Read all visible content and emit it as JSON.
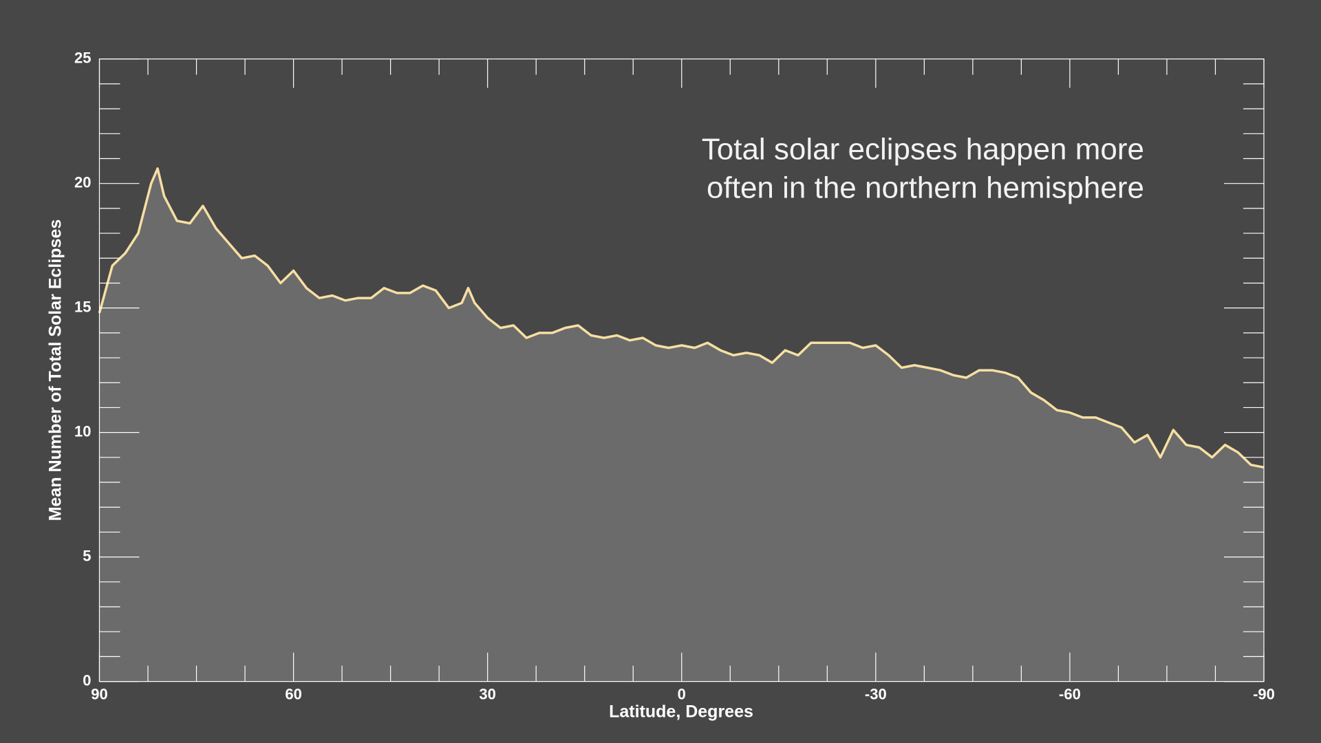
{
  "chart_data": {
    "type": "area",
    "annotation": [
      "Total solar eclipses happen more",
      "often in the northern hemisphere"
    ],
    "xlabel": "Latitude, Degrees",
    "ylabel": "Mean Number of Total Solar Eclipses",
    "x": [
      90,
      88,
      86,
      84,
      82,
      81,
      80,
      78,
      76,
      74,
      72,
      70,
      68,
      66,
      64,
      62,
      60,
      58,
      56,
      54,
      52,
      50,
      48,
      46,
      44,
      42,
      40,
      38,
      36,
      34,
      33,
      32,
      30,
      28,
      26,
      24,
      22,
      20,
      18,
      16,
      14,
      12,
      10,
      8,
      6,
      4,
      2,
      0,
      -2,
      -4,
      -6,
      -8,
      -10,
      -12,
      -14,
      -16,
      -18,
      -20,
      -22,
      -24,
      -26,
      -28,
      -30,
      -32,
      -34,
      -36,
      -38,
      -40,
      -42,
      -44,
      -46,
      -48,
      -50,
      -52,
      -54,
      -56,
      -58,
      -60,
      -62,
      -64,
      -66,
      -68,
      -70,
      -72,
      -74,
      -76,
      -78,
      -80,
      -82,
      -84,
      -86,
      -88,
      -90
    ],
    "series": [
      {
        "color": "#f7dfa3",
        "fill": "#6b6b6b",
        "values": [
          14.8,
          16.7,
          17.2,
          18.0,
          20.0,
          20.6,
          19.5,
          18.5,
          18.4,
          19.1,
          18.2,
          17.6,
          17.0,
          17.1,
          16.7,
          16.0,
          16.5,
          15.8,
          15.4,
          15.5,
          15.3,
          15.4,
          15.4,
          15.8,
          15.6,
          15.6,
          15.9,
          15.7,
          15.0,
          15.2,
          15.8,
          15.2,
          14.6,
          14.2,
          14.3,
          13.8,
          14.0,
          14.0,
          14.2,
          14.3,
          13.9,
          13.8,
          13.9,
          13.7,
          13.8,
          13.5,
          13.4,
          13.5,
          13.4,
          13.6,
          13.3,
          13.1,
          13.2,
          13.1,
          12.8,
          13.3,
          13.1,
          13.6,
          13.6,
          13.6,
          13.6,
          13.4,
          13.5,
          13.1,
          12.6,
          12.7,
          12.6,
          12.5,
          12.3,
          12.2,
          12.5,
          12.5,
          12.4,
          12.2,
          11.6,
          11.3,
          10.9,
          10.8,
          10.6,
          10.6,
          10.4,
          10.2,
          9.6,
          9.9,
          9.0,
          10.1,
          9.5,
          9.4,
          9.0,
          9.5,
          9.2,
          8.7,
          8.6
        ]
      }
    ],
    "xlim": [
      90,
      -90
    ],
    "ylim": [
      0,
      25
    ],
    "xticks": [
      90,
      60,
      30,
      0,
      -30,
      -60,
      -90
    ],
    "yticks": [
      0,
      5,
      10,
      15,
      20,
      25
    ],
    "xminorticks": [
      82.5,
      75,
      67.5,
      52.5,
      45,
      37.5,
      22.5,
      15,
      7.5,
      -7.5,
      -15,
      -22.5,
      -37.5,
      -45,
      -52.5,
      -67.5,
      -75,
      -82.5
    ],
    "yminorticks": [
      1,
      2,
      3,
      4,
      6,
      7,
      8,
      9,
      11,
      12,
      13,
      14,
      16,
      17,
      18,
      19,
      21,
      22,
      23,
      24
    ]
  }
}
